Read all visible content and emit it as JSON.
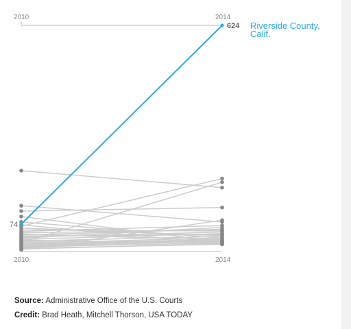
{
  "chart_data": {
    "type": "line",
    "title": "",
    "xlabel": "",
    "ylabel": "",
    "categories": [
      "2010",
      "2014"
    ],
    "ylim": [
      0,
      650
    ],
    "grid": false,
    "highlight": {
      "name": "Riverside County, Calif.",
      "label_lines": [
        "Riverside County,",
        "Calif."
      ],
      "start_label": "74",
      "end_label": "624",
      "values": [
        74,
        624
      ],
      "color": "#2ea7e8"
    },
    "background_series_color": "#cccccc",
    "point_color": "#888888",
    "background_series": [
      [
        222,
        175
      ],
      [
        125,
        80
      ],
      [
        110,
        120
      ],
      [
        95,
        25
      ],
      [
        80,
        35
      ],
      [
        72,
        20
      ],
      [
        68,
        200
      ],
      [
        63,
        42
      ],
      [
        58,
        55
      ],
      [
        54,
        70
      ],
      [
        50,
        58
      ],
      [
        47,
        30
      ],
      [
        44,
        60
      ],
      [
        41,
        45
      ],
      [
        38,
        52
      ],
      [
        35,
        65
      ],
      [
        32,
        48
      ],
      [
        30,
        22
      ],
      [
        27,
        40
      ],
      [
        25,
        25
      ],
      [
        23,
        190
      ],
      [
        21,
        36
      ],
      [
        19,
        28
      ],
      [
        17,
        33
      ],
      [
        15,
        30
      ],
      [
        13,
        26
      ],
      [
        11,
        22
      ],
      [
        9,
        30
      ],
      [
        7,
        18
      ],
      [
        5,
        20
      ],
      [
        3,
        85
      ]
    ]
  },
  "notes": {
    "source_label": "Source:",
    "source_text": "Administrative Office of the U.S. Courts",
    "credit_label": "Credit:",
    "credit_text": "Brad Heath, Mitchell Thorson, USA TODAY"
  }
}
